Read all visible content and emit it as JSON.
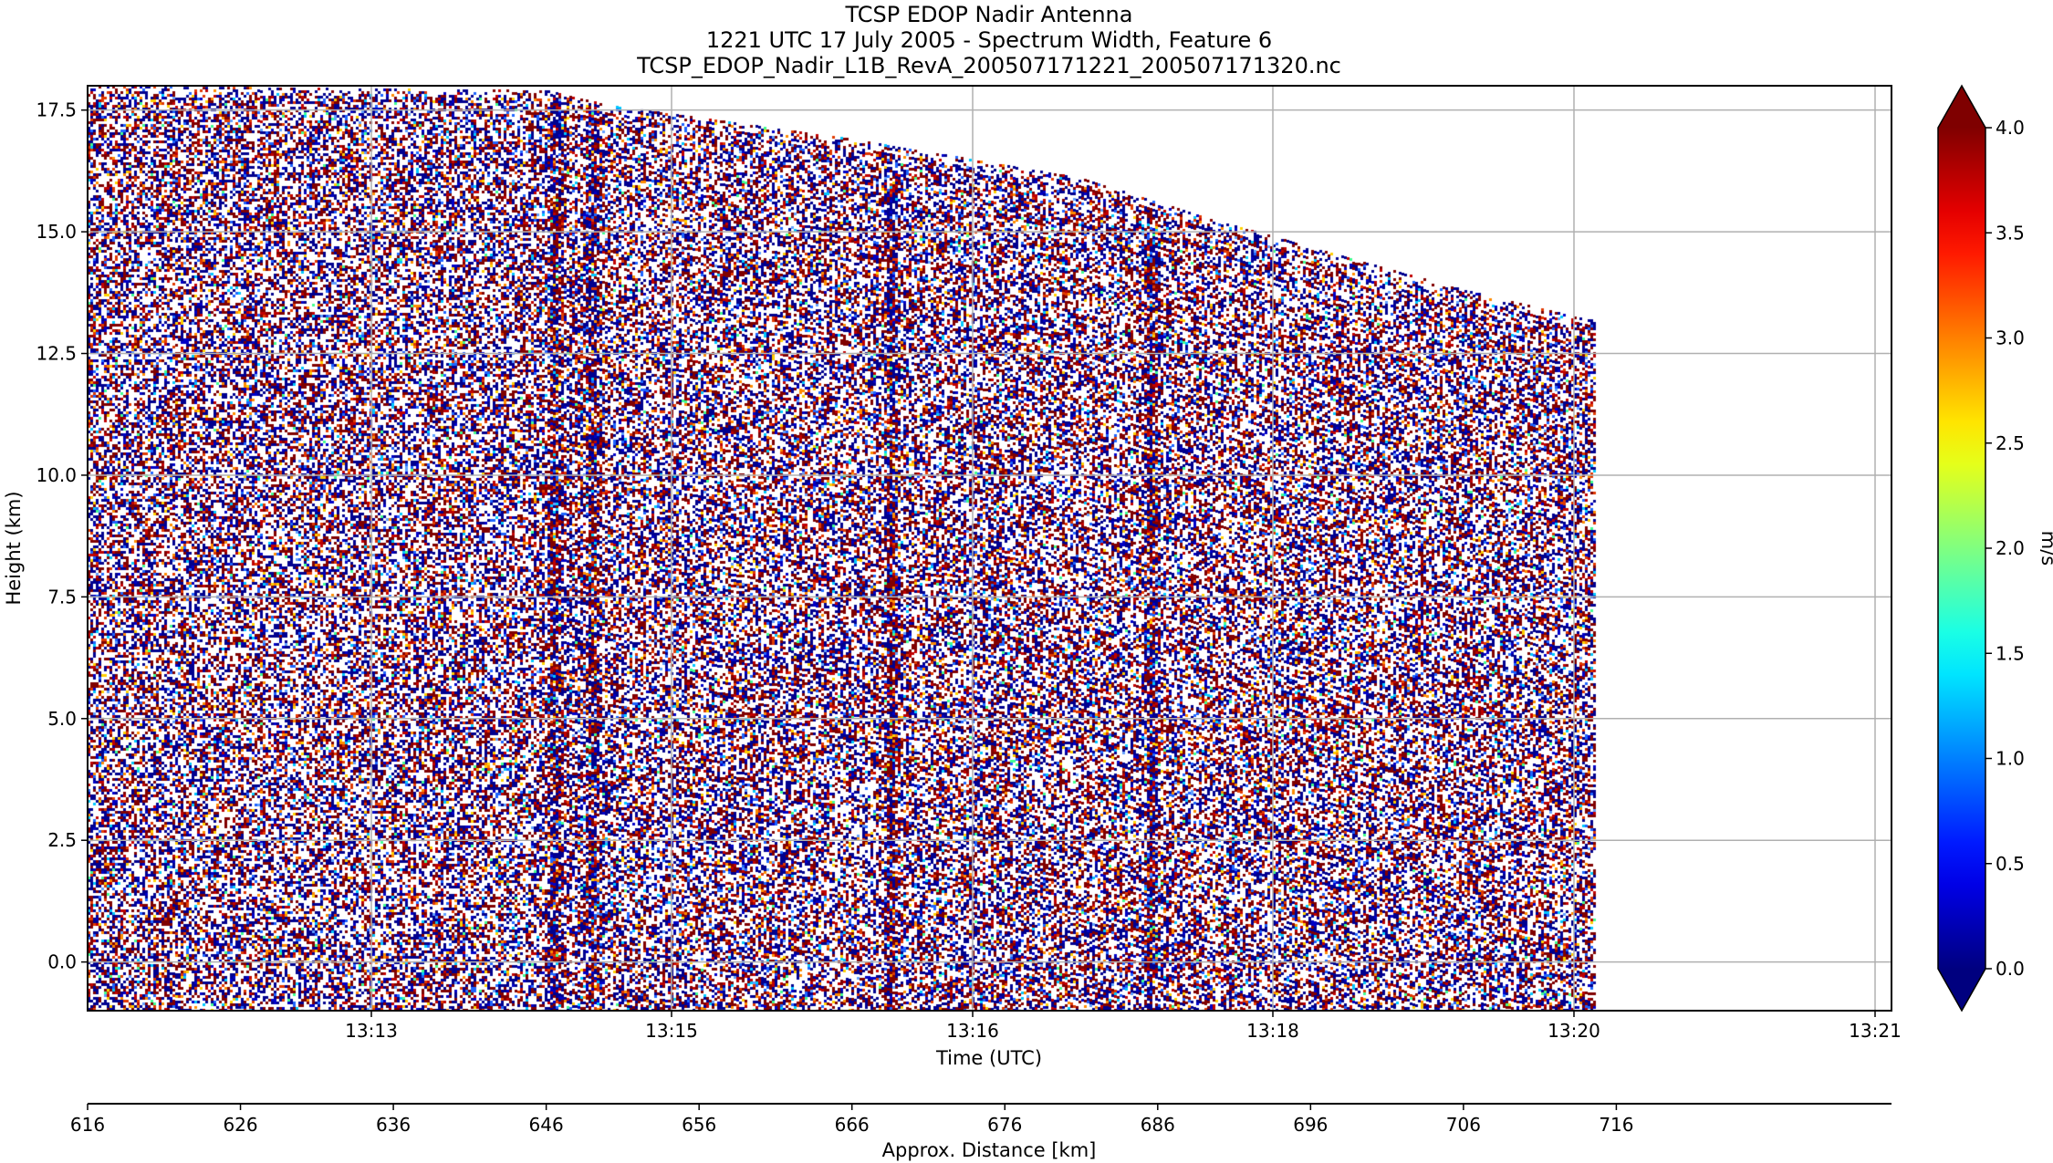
{
  "chart_data": {
    "type": "heatmap",
    "title_lines": [
      "TCSP EDOP Nadir Antenna",
      "1221 UTC 17 July 2005 - Spectrum Width, Feature 6",
      "TCSP_EDOP_Nadir_L1B_RevA_200507171221_200507171320.nc"
    ],
    "xlabel": "Time (UTC)",
    "ylabel": "Height (km)",
    "x_tick_labels": [
      "13:13",
      "13:15",
      "13:16",
      "13:18",
      "13:20",
      "13:21"
    ],
    "y_ticks": [
      0.0,
      2.5,
      5.0,
      7.5,
      10.0,
      12.5,
      15.0,
      17.5
    ],
    "y_tick_labels": [
      "0.0",
      "2.5",
      "5.0",
      "7.5",
      "10.0",
      "12.5",
      "15.0",
      "17.5"
    ],
    "ylim": [
      -1.0,
      18.0
    ],
    "grid": true,
    "secondary_axis": {
      "label": "Approx. Distance [km]",
      "ticks": [
        616,
        626,
        636,
        646,
        656,
        666,
        676,
        686,
        696,
        706,
        716
      ],
      "tick_labels": [
        "616",
        "626",
        "636",
        "646",
        "656",
        "666",
        "676",
        "686",
        "696",
        "706",
        "716"
      ],
      "range": [
        616,
        734
      ]
    },
    "colorbar": {
      "label": "m/s",
      "min": 0.0,
      "max": 4.0,
      "ticks": [
        0.0,
        0.5,
        1.0,
        1.5,
        2.0,
        2.5,
        3.0,
        3.5,
        4.0
      ],
      "tick_labels": [
        "0.0",
        "0.5",
        "1.0",
        "1.5",
        "2.0",
        "2.5",
        "3.0",
        "3.5",
        "4.0"
      ],
      "extend": "both",
      "colormap": "jet",
      "under_color": "#00007f",
      "over_color": "#7f0000"
    },
    "data_top_height_km": [
      {
        "distance_km": 616,
        "top_km": 18.0
      },
      {
        "distance_km": 646,
        "top_km": 17.9
      },
      {
        "distance_km": 650,
        "top_km": 17.6
      },
      {
        "distance_km": 666,
        "top_km": 16.9
      },
      {
        "distance_km": 681,
        "top_km": 16.1
      },
      {
        "distance_km": 689,
        "top_km": 15.3
      },
      {
        "distance_km": 698,
        "top_km": 14.5
      },
      {
        "distance_km": 706,
        "top_km": 13.8
      },
      {
        "distance_km": 714,
        "top_km": 13.2
      },
      {
        "distance_km": 714.6,
        "top_km": 13.2
      }
    ],
    "vertical_streaks_km": [
      646.5,
      649,
      668.5,
      685.5
    ]
  }
}
